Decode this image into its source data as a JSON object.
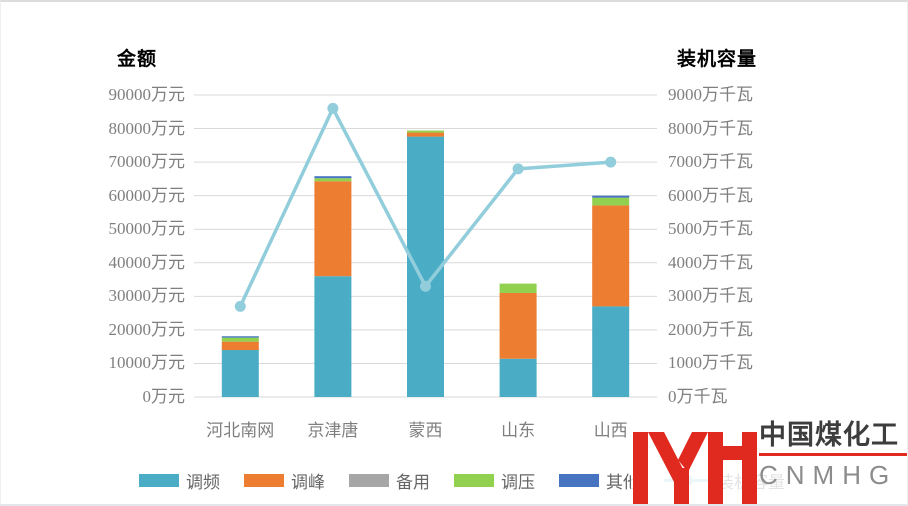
{
  "chart_data": {
    "type": "stacked-bar + line combo",
    "categories": [
      "河北南网",
      "京津唐",
      "蒙西",
      "山东",
      "山西"
    ],
    "bar_series": [
      {
        "name": "调频",
        "color": "#4AACC5",
        "values": [
          14000,
          36000,
          77600,
          11400,
          27000
        ]
      },
      {
        "name": "调峰",
        "color": "#ED7D31",
        "values": [
          2500,
          28300,
          1200,
          19600,
          30100
        ]
      },
      {
        "name": "备用",
        "color": "#A6A6A6",
        "values": [
          0,
          0,
          0,
          0,
          0
        ]
      },
      {
        "name": "调压",
        "color": "#92D050",
        "values": [
          1200,
          900,
          600,
          2800,
          2300
        ]
      },
      {
        "name": "其他",
        "color": "#4674C1",
        "values": [
          400,
          600,
          0,
          0,
          600
        ]
      }
    ],
    "line_series": {
      "name": "装机容量",
      "color": "#92CDDC",
      "values": [
        2700,
        8600,
        3300,
        6800,
        7000
      ]
    },
    "left_axis": {
      "title": "金额",
      "unit": "万元",
      "min": 0,
      "max": 90000,
      "step": 10000
    },
    "right_axis": {
      "title": "装机容量",
      "unit": "万千瓦",
      "min": 0,
      "max": 9000,
      "step": 1000
    },
    "grid": true,
    "grid_color": "#D9D9D9",
    "legend_position": "bottom",
    "bar_totals": [
      18100,
      65800,
      79400,
      33800,
      60000
    ]
  },
  "logo": {
    "monogram": "MYH",
    "title": "中国煤化工",
    "subtitle": "CNMHG",
    "red": "#E02A1F",
    "title_color": "#3D3D3D",
    "subtitle_color": "#8C8C8C"
  }
}
